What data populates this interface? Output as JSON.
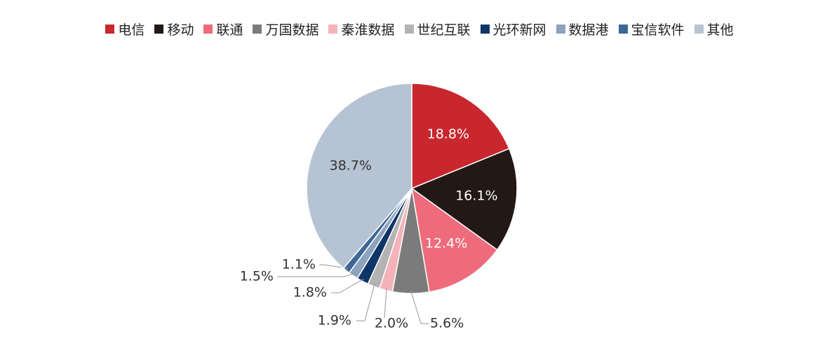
{
  "chart_data": {
    "type": "pie",
    "legend_position": "top",
    "categories": [
      "电信",
      "移动",
      "联通",
      "万国数据",
      "秦淮数据",
      "世纪互联",
      "光环新网",
      "数据港",
      "宝信软件",
      "其他"
    ],
    "values": [
      18.8,
      16.1,
      12.4,
      5.6,
      2.0,
      1.9,
      1.8,
      1.5,
      1.1,
      38.7
    ],
    "value_labels": [
      "18.8%",
      "16.1%",
      "12.4%",
      "5.6%",
      "2.0%",
      "1.9%",
      "1.8%",
      "1.5%",
      "1.1%",
      "38.7%"
    ],
    "colors": [
      "#c8272d",
      "#231815",
      "#ee6b7b",
      "#7b7b7b",
      "#f4b3b8",
      "#b3b3b3",
      "#0e3566",
      "#8ea3bd",
      "#3d6796",
      "#b6c3d3"
    ],
    "label_colors": [
      "#ffffff",
      "#ffffff",
      "#ffffff",
      "#333333",
      "#333333",
      "#333333",
      "#333333",
      "#333333",
      "#333333",
      "#333333"
    ]
  }
}
